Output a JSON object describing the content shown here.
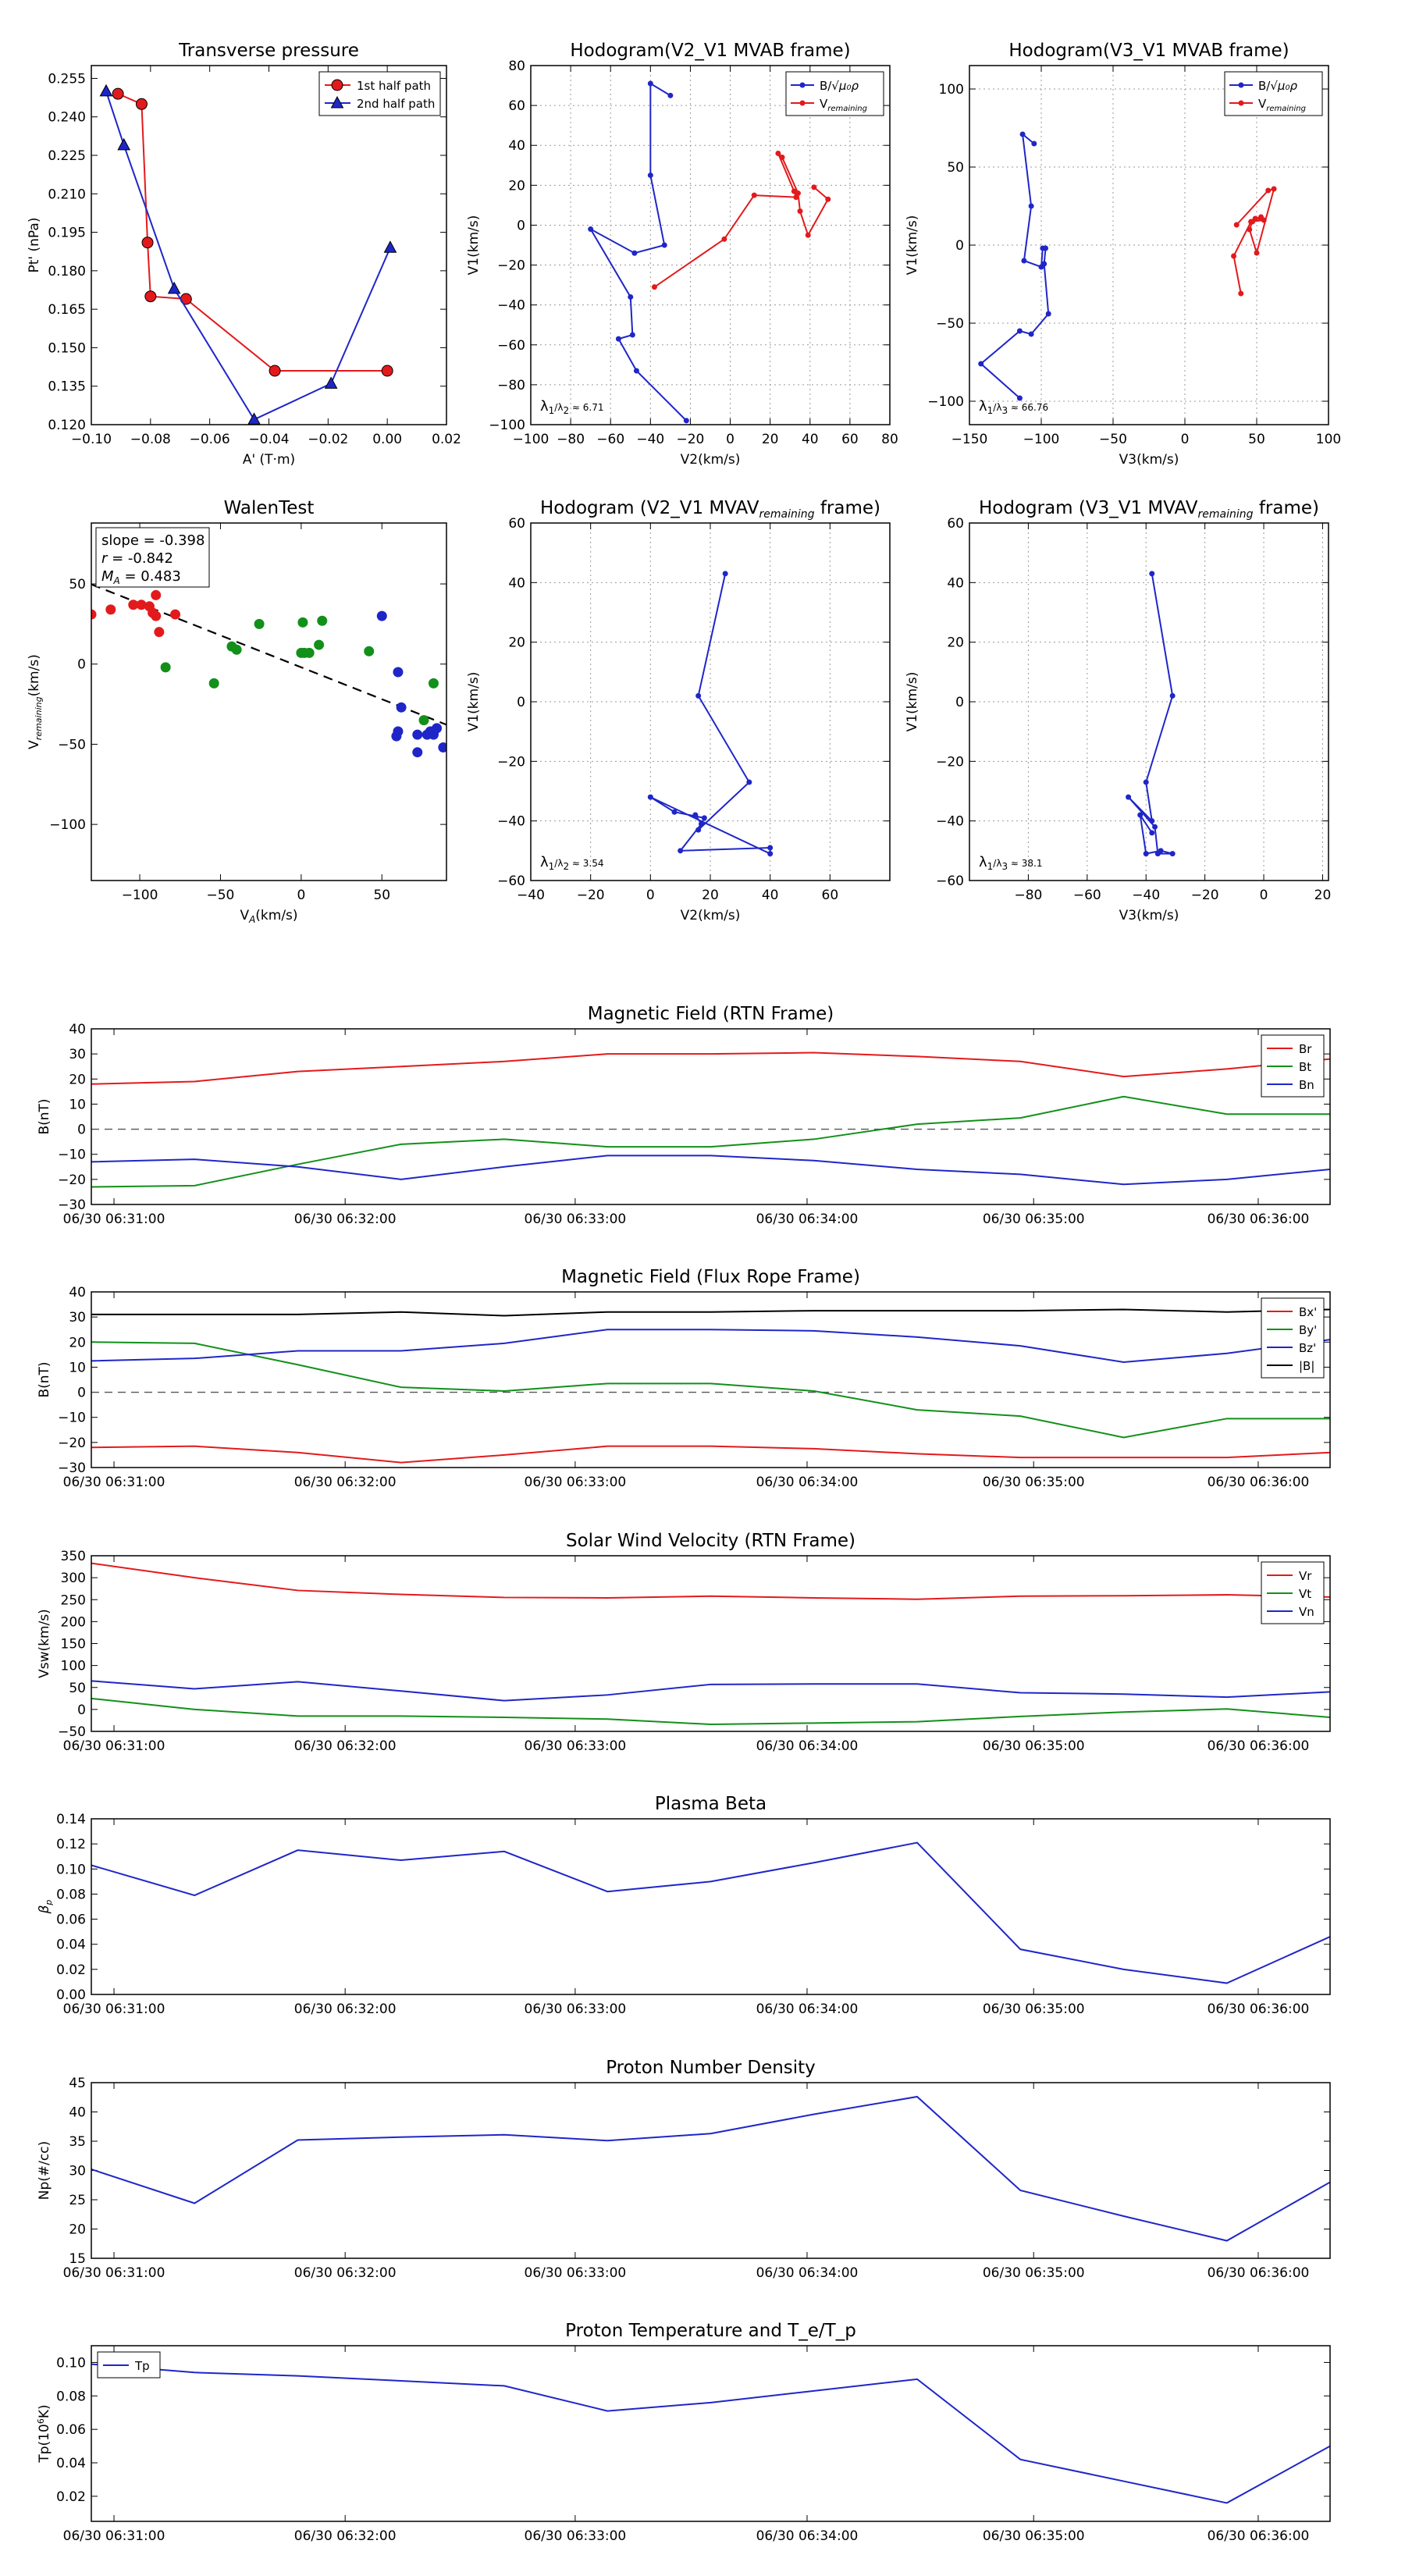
{
  "figure": {
    "name": "flux-rope-analysis-figure"
  },
  "colors": {
    "red": "#e31a1c",
    "blue": "#1f26c8",
    "green": "#12901a",
    "black": "#000000",
    "grid": "#9a9a9a"
  },
  "chart_data": [
    {
      "id": "transverse",
      "type": "line",
      "title": "Transverse pressure",
      "xlabel": "A' (T·m)",
      "ylabel": "Pt' (nPa)",
      "xlim": [
        -0.1,
        0.02
      ],
      "ylim": [
        0.12,
        0.26
      ],
      "xticks": [
        -0.1,
        -0.08,
        -0.06,
        -0.04,
        -0.02,
        0.0,
        0.02
      ],
      "xticklabels": [
        "−0.10",
        "−0.08",
        "−0.06",
        "−0.04",
        "−0.02",
        "0.00",
        "0.02"
      ],
      "yticks": [
        0.12,
        0.135,
        0.15,
        0.165,
        0.18,
        0.195,
        0.21,
        0.225,
        0.24,
        0.255
      ],
      "yticklabels": [
        "0.120",
        "0.135",
        "0.150",
        "0.165",
        "0.180",
        "0.195",
        "0.210",
        "0.225",
        "0.240",
        "0.255"
      ],
      "grid": false,
      "legend": "upper right",
      "series": [
        {
          "name": "1st half path",
          "color": "red",
          "marker": "circle",
          "x": [
            -0.091,
            -0.083,
            -0.081,
            -0.08,
            -0.068,
            -0.038,
            0.0
          ],
          "y": [
            0.249,
            0.245,
            0.191,
            0.17,
            0.169,
            0.141,
            0.141
          ]
        },
        {
          "name": "2nd half path",
          "color": "blue",
          "marker": "triangle",
          "x": [
            -0.095,
            -0.089,
            -0.072,
            -0.045,
            -0.019,
            0.001
          ],
          "y": [
            0.25,
            0.229,
            0.173,
            0.122,
            0.136,
            0.189
          ]
        }
      ]
    },
    {
      "id": "hodo-v2-mvab",
      "type": "line",
      "title": "Hodogram(V2_V1 MVAB frame)",
      "xlabel": "V2(km/s)",
      "ylabel": "V1(km/s)",
      "xlim": [
        -100,
        80
      ],
      "ylim": [
        -100,
        80
      ],
      "xticks": [
        -100,
        -80,
        -60,
        -40,
        -20,
        0,
        20,
        40,
        60,
        80
      ],
      "xticklabels": [
        "−100",
        "−80",
        "−60",
        "−40",
        "−20",
        "0",
        "20",
        "40",
        "60",
        "80"
      ],
      "yticks": [
        -100,
        -80,
        -60,
        -40,
        -20,
        0,
        20,
        40,
        60,
        80
      ],
      "yticklabels": [
        "−100",
        "−80",
        "−60",
        "−40",
        "−20",
        "0",
        "20",
        "40",
        "60",
        "80"
      ],
      "grid": true,
      "legend": "upper right",
      "annotation": "λ1/λ2 ≈ 6.71",
      "series": [
        {
          "name": "B/√(μ0ρ)",
          "color": "blue",
          "marker": "dot",
          "x": [
            -30,
            -40,
            -40,
            -33,
            -48,
            -70,
            -50,
            -49,
            -56,
            -47,
            -22
          ],
          "y": [
            65,
            71,
            25,
            -10,
            -14,
            -2,
            -36,
            -55,
            -57,
            -73,
            -98
          ]
        },
        {
          "name": "V_remaining",
          "color": "red",
          "marker": "dot",
          "x": [
            -38,
            -3,
            12,
            33,
            32,
            24,
            26,
            34,
            35,
            39,
            49,
            42
          ],
          "y": [
            -31,
            -7,
            15,
            14,
            17,
            36,
            34,
            16,
            7,
            -5,
            13,
            19
          ]
        }
      ]
    },
    {
      "id": "hodo-v3-mvab",
      "type": "line",
      "title": "Hodogram(V3_V1 MVAB frame)",
      "xlabel": "V3(km/s)",
      "ylabel": "V1(km/s)",
      "xlim": [
        -150,
        100
      ],
      "ylim": [
        -115,
        115
      ],
      "xticks": [
        -150,
        -100,
        -50,
        0,
        50,
        100
      ],
      "xticklabels": [
        "−150",
        "−100",
        "−50",
        "0",
        "50",
        "100"
      ],
      "yticks": [
        -100,
        -50,
        0,
        50,
        100
      ],
      "yticklabels": [
        "−100",
        "−50",
        "0",
        "50",
        "100"
      ],
      "grid": true,
      "legend": "upper right",
      "annotation": "λ1/λ3 ≈ 66.76",
      "series": [
        {
          "name": "B/√(μ0ρ)",
          "color": "blue",
          "marker": "dot",
          "x": [
            -105,
            -113,
            -107,
            -112,
            -100,
            -99,
            -97,
            -98,
            -95,
            -107,
            -115,
            -142,
            -115
          ],
          "y": [
            65,
            71,
            25,
            -10,
            -14,
            -2,
            -2,
            -12,
            -44,
            -57,
            -55,
            -76,
            -98
          ]
        },
        {
          "name": "V_remaining",
          "color": "red",
          "marker": "dot",
          "x": [
            39,
            34,
            46,
            55,
            49,
            53,
            47,
            45,
            50,
            62,
            58,
            36
          ],
          "y": [
            -31,
            -7,
            15,
            16,
            17,
            18,
            15,
            10,
            -5,
            36,
            35,
            13
          ]
        }
      ]
    },
    {
      "id": "walen",
      "type": "scatter",
      "title": "WalenTest",
      "xlabel": "V_A(km/s)",
      "ylabel": "V_remaining(km/s)",
      "xlim": [
        -130,
        90
      ],
      "ylim": [
        -135,
        88
      ],
      "xticks": [
        -100,
        -50,
        0,
        50
      ],
      "xticklabels": [
        "−100",
        "−50",
        "0",
        "50"
      ],
      "yticks": [
        -100,
        -50,
        0,
        50
      ],
      "yticklabels": [
        "−100",
        "−50",
        "0",
        "50"
      ],
      "grid": false,
      "fit": {
        "slope": -0.398,
        "intercept": -2
      },
      "annotations": [
        "slope = -0.398",
        "r = -0.842",
        "M_A = 0.483"
      ],
      "series": [
        {
          "name": "red",
          "color": "red",
          "x": [
            -130,
            -118,
            -104,
            -99,
            -94,
            -92,
            -90,
            -88,
            -78,
            -90
          ],
          "y": [
            31,
            34,
            37,
            37,
            36,
            32,
            43,
            20,
            31,
            30
          ]
        },
        {
          "name": "green",
          "color": "green",
          "x": [
            -84,
            -54,
            -43,
            -40,
            -26,
            0,
            1,
            2,
            5,
            11,
            13,
            42,
            76,
            82
          ],
          "y": [
            -2,
            -12,
            11,
            9,
            25,
            7,
            26,
            7,
            7,
            12,
            27,
            8,
            -35,
            -12
          ]
        },
        {
          "name": "blue",
          "color": "blue",
          "x": [
            50,
            59,
            60,
            60,
            62,
            72,
            72,
            78,
            80,
            82,
            82,
            84,
            88
          ],
          "y": [
            30,
            -45,
            -42,
            -5,
            -27,
            -55,
            -44,
            -44,
            -42,
            -43,
            -44,
            -40,
            -52
          ]
        }
      ]
    },
    {
      "id": "hodo-v2-mvav",
      "type": "line",
      "title": "Hodogram (V2_V1 MVAV_remaining frame)",
      "xlabel": "V2(km/s)",
      "ylabel": "V1(km/s)",
      "xlim": [
        -40,
        80
      ],
      "ylim": [
        -60,
        60
      ],
      "xticks": [
        -40,
        -20,
        0,
        20,
        40,
        60
      ],
      "xticklabels": [
        "−40",
        "−20",
        "0",
        "20",
        "40",
        "60"
      ],
      "yticks": [
        -60,
        -40,
        -20,
        0,
        20,
        40,
        60
      ],
      "yticklabels": [
        "−60",
        "−40",
        "−20",
        "0",
        "20",
        "40",
        "60"
      ],
      "grid": true,
      "annotation": "λ1/λ2 ≈ 3.54",
      "series": [
        {
          "name": "V",
          "color": "blue",
          "marker": "dot",
          "x": [
            25,
            16,
            33,
            16,
            18,
            8,
            0,
            40,
            40,
            10,
            17,
            15
          ],
          "y": [
            43,
            2,
            -27,
            -43,
            -39,
            -37,
            -32,
            -51,
            -49,
            -50,
            -41,
            -38
          ]
        }
      ]
    },
    {
      "id": "hodo-v3-mvav",
      "type": "line",
      "title": "Hodogram (V3_V1 MVAV_remaining frame)",
      "xlabel": "V3(km/s)",
      "ylabel": "V1(km/s)",
      "xlim": [
        -100,
        22
      ],
      "ylim": [
        -60,
        60
      ],
      "xticks": [
        -80,
        -60,
        -40,
        -20,
        0,
        20
      ],
      "xticklabels": [
        "−80",
        "−60",
        "−40",
        "−20",
        "0",
        "20"
      ],
      "yticks": [
        -60,
        -40,
        -20,
        0,
        20,
        40,
        60
      ],
      "yticklabels": [
        "−60",
        "−40",
        "−20",
        "0",
        "20",
        "40",
        "60"
      ],
      "grid": true,
      "annotation": "λ1/λ3 ≈ 38.1",
      "series": [
        {
          "name": "V",
          "color": "blue",
          "marker": "dot",
          "x": [
            -38,
            -31,
            -40,
            -38,
            -46,
            -37,
            -36,
            -31,
            -35,
            -40,
            -42,
            -38
          ],
          "y": [
            43,
            2,
            -27,
            -40,
            -32,
            -42,
            -51,
            -51,
            -50,
            -51,
            -38,
            -44
          ]
        }
      ]
    },
    {
      "id": "mag-rtn",
      "type": "line",
      "title": "Magnetic Field (RTN Frame)",
      "ylabel": "B(nT)",
      "ylim": [
        -30,
        40
      ],
      "yticks": [
        -30,
        -20,
        -10,
        0,
        10,
        20,
        30,
        40
      ],
      "yticklabels": [
        "−30",
        "−20",
        "−10",
        "0",
        "10",
        "20",
        "30",
        "40"
      ],
      "grid": false,
      "legend": "upper right",
      "zero_line": true,
      "xticklabels": [
        "06/30 06:31:00",
        "06/30 06:32:00",
        "06/30 06:33:00",
        "06/30 06:34:00",
        "06/30 06:35:00",
        "06/30 06:36:00"
      ],
      "series": [
        {
          "name": "Br",
          "color": "red",
          "y": [
            18,
            19,
            23,
            25,
            27,
            30,
            30,
            30.5,
            29,
            27,
            21,
            24,
            28
          ]
        },
        {
          "name": "Bt",
          "color": "green",
          "y": [
            -23,
            -22.5,
            -14,
            -6,
            -4,
            -7,
            -7,
            -4,
            2,
            4.5,
            13,
            6,
            6
          ]
        },
        {
          "name": "Bn",
          "color": "blue",
          "y": [
            -13,
            -12,
            -15,
            -20,
            -15,
            -10.5,
            -10.5,
            -12.5,
            -16,
            -18,
            -22,
            -20,
            -16
          ]
        }
      ]
    },
    {
      "id": "mag-flux-rope",
      "type": "line",
      "title": "Magnetic Field (Flux Rope Frame)",
      "ylabel": "B(nT)",
      "ylim": [
        -30,
        40
      ],
      "yticks": [
        -30,
        -20,
        -10,
        0,
        10,
        20,
        30,
        40
      ],
      "yticklabels": [
        "−30",
        "−20",
        "−10",
        "0",
        "10",
        "20",
        "30",
        "40"
      ],
      "grid": false,
      "legend": "upper right",
      "zero_line": true,
      "xticklabels": [
        "06/30 06:31:00",
        "06/30 06:32:00",
        "06/30 06:33:00",
        "06/30 06:34:00",
        "06/30 06:35:00",
        "06/30 06:36:00"
      ],
      "series": [
        {
          "name": "Bx'",
          "color": "red",
          "y": [
            -22,
            -21.5,
            -24,
            -28,
            -25,
            -21.5,
            -21.5,
            -22.5,
            -24.5,
            -26,
            -26,
            -26,
            -24
          ]
        },
        {
          "name": "By'",
          "color": "green",
          "y": [
            20,
            19.5,
            11,
            2,
            0.5,
            3.5,
            3.5,
            0.5,
            -7,
            -9.5,
            -18,
            -10.5,
            -10.5
          ]
        },
        {
          "name": "Bz'",
          "color": "blue",
          "y": [
            12.5,
            13.5,
            16.5,
            16.5,
            19.5,
            25,
            25,
            24.5,
            22,
            18.5,
            12,
            15.5,
            21
          ]
        },
        {
          "name": "|B|",
          "color": "black",
          "y": [
            31,
            31,
            31,
            32,
            30.5,
            32,
            32,
            32.5,
            32.5,
            32.5,
            33,
            32,
            33
          ]
        }
      ]
    },
    {
      "id": "solar-wind",
      "type": "line",
      "title": "Solar Wind Velocity (RTN Frame)",
      "ylabel": "Vsw(km/s)",
      "ylim": [
        -50,
        350
      ],
      "yticks": [
        -50,
        0,
        50,
        100,
        150,
        200,
        250,
        300,
        350
      ],
      "yticklabels": [
        "−50",
        "0",
        "50",
        "100",
        "150",
        "200",
        "250",
        "300",
        "350"
      ],
      "grid": false,
      "legend": "upper right",
      "xticklabels": [
        "06/30 06:31:00",
        "06/30 06:32:00",
        "06/30 06:33:00",
        "06/30 06:34:00",
        "06/30 06:35:00",
        "06/30 06:36:00"
      ],
      "series": [
        {
          "name": "Vr",
          "color": "red",
          "y": [
            333,
            300,
            271,
            262,
            255,
            254,
            258,
            254,
            251,
            258,
            259,
            261,
            256
          ]
        },
        {
          "name": "Vt",
          "color": "green",
          "y": [
            25,
            0,
            -15,
            -15,
            -18,
            -22,
            -34,
            -31,
            -28,
            -16,
            -6,
            1,
            -18
          ]
        },
        {
          "name": "Vn",
          "color": "blue",
          "y": [
            65,
            47,
            63,
            42,
            20,
            33,
            57,
            58,
            58,
            38,
            35,
            28,
            40
          ]
        }
      ]
    },
    {
      "id": "plasma-beta",
      "type": "line",
      "title": "Plasma Beta",
      "ylabel": "β_p",
      "ylim": [
        0.0,
        0.14
      ],
      "yticks": [
        0.0,
        0.02,
        0.04,
        0.06,
        0.08,
        0.1,
        0.12,
        0.14
      ],
      "yticklabels": [
        "0.00",
        "0.02",
        "0.04",
        "0.06",
        "0.08",
        "0.10",
        "0.12",
        "0.14"
      ],
      "grid": false,
      "xticklabels": [
        "06/30 06:31:00",
        "06/30 06:32:00",
        "06/30 06:33:00",
        "06/30 06:34:00",
        "06/30 06:35:00",
        "06/30 06:36:00"
      ],
      "series": [
        {
          "name": "beta",
          "color": "blue",
          "y": [
            0.103,
            0.079,
            0.115,
            0.107,
            0.114,
            0.082,
            0.09,
            0.105,
            0.121,
            0.036,
            0.02,
            0.009,
            0.046
          ]
        }
      ]
    },
    {
      "id": "density",
      "type": "line",
      "title": "Proton Number Density",
      "ylabel": "Np(#/cc)",
      "ylim": [
        15,
        45
      ],
      "yticks": [
        15,
        20,
        25,
        30,
        35,
        40,
        45
      ],
      "yticklabels": [
        "15",
        "20",
        "25",
        "30",
        "35",
        "40",
        "45"
      ],
      "grid": false,
      "xticklabels": [
        "06/30 06:31:00",
        "06/30 06:32:00",
        "06/30 06:33:00",
        "06/30 06:34:00",
        "06/30 06:35:00",
        "06/30 06:36:00"
      ],
      "series": [
        {
          "name": "Np",
          "color": "blue",
          "y": [
            30.2,
            24.4,
            35.2,
            35.7,
            36.1,
            35.1,
            36.3,
            39.6,
            42.6,
            26.6,
            22.2,
            18.0,
            28.0
          ]
        }
      ]
    },
    {
      "id": "temperature",
      "type": "line",
      "title": "Proton Temperature and T_e/T_p",
      "ylabel": "Tp(10^6 K)",
      "ylim": [
        0.005,
        0.11
      ],
      "yticks": [
        0.02,
        0.04,
        0.06,
        0.08,
        0.1
      ],
      "yticklabels": [
        "0.02",
        "0.04",
        "0.06",
        "0.08",
        "0.10"
      ],
      "grid": false,
      "legend": "upper left",
      "xticklabels": [
        "06/30 06:31:00",
        "06/30 06:32:00",
        "06/30 06:33:00",
        "06/30 06:34:00",
        "06/30 06:35:00",
        "06/30 06:36:00"
      ],
      "series": [
        {
          "name": "Tp",
          "color": "blue",
          "y": [
            0.099,
            0.094,
            0.092,
            0.089,
            0.086,
            0.071,
            0.076,
            0.083,
            0.09,
            0.042,
            0.029,
            0.016,
            0.05
          ]
        }
      ]
    }
  ]
}
